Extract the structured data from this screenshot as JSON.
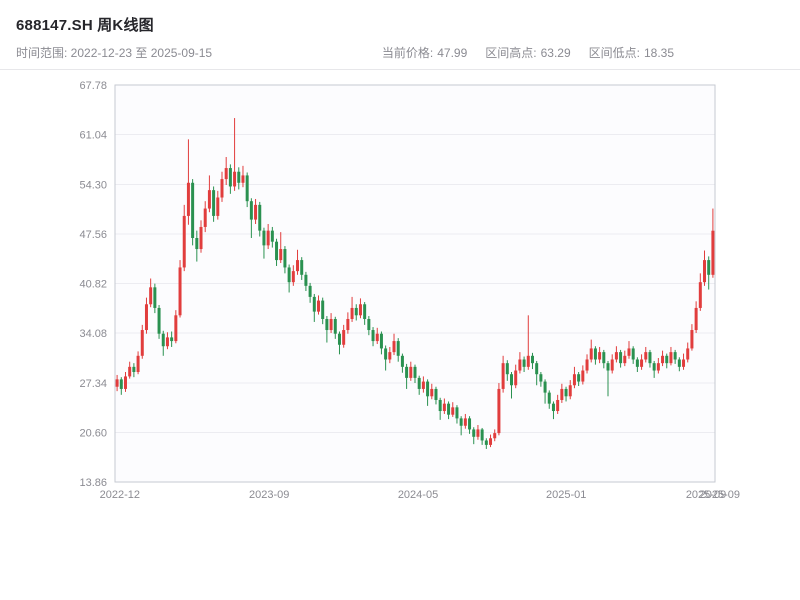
{
  "header": {
    "title": "688147.SH 周K线图",
    "time_range": "时间范围: 2022-12-23 至 2025-09-15",
    "stats": [
      {
        "label": "当前价格:",
        "value": "47.99"
      },
      {
        "label": "区间高点:",
        "value": "63.29"
      },
      {
        "label": "区间低点:",
        "value": "18.35"
      }
    ]
  },
  "chart_data": {
    "type": "candlestick",
    "title": "688147.SH 周K线图",
    "interval": "weekly",
    "start_date": "2022-12-23",
    "end_date": "2025-09-15",
    "current_price": 47.99,
    "range_high": 63.29,
    "range_low": 18.35,
    "y_min": 13.86,
    "y_max": 67.78,
    "y_ticks": [
      "67.78",
      "61.04",
      "54.30",
      "47.56",
      "40.82",
      "34.08",
      "27.34",
      "20.60",
      "13.86"
    ],
    "x_ticks": [
      {
        "label": "2022-12",
        "pos": 0.008
      },
      {
        "label": "2023-09",
        "pos": 0.257
      },
      {
        "label": "2024-05",
        "pos": 0.505
      },
      {
        "label": "2025-01",
        "pos": 0.752
      },
      {
        "label": "2025-09",
        "pos": 0.985
      },
      {
        "label": "2025-09",
        "pos": 1.008
      }
    ],
    "colors": {
      "up": "#e13d3d",
      "down": "#2a9150",
      "grid": "#ececf1",
      "axis_border": "#c6cad1",
      "plot_bg": "#fcfcfe",
      "tick_text": "#8b8b92"
    },
    "ohlc": [
      [
        26.8,
        28.4,
        26.2,
        27.8
      ],
      [
        27.8,
        28.1,
        25.7,
        26.5
      ],
      [
        26.5,
        28.8,
        26.1,
        28.2
      ],
      [
        28.2,
        30.2,
        27.9,
        29.5
      ],
      [
        29.5,
        30.0,
        28.1,
        28.8
      ],
      [
        28.8,
        31.6,
        28.5,
        31.0
      ],
      [
        31.0,
        35.2,
        30.6,
        34.5
      ],
      [
        34.5,
        38.9,
        34.0,
        38.0
      ],
      [
        38.0,
        41.5,
        37.6,
        40.3
      ],
      [
        40.3,
        40.8,
        36.8,
        37.5
      ],
      [
        37.5,
        37.9,
        33.3,
        34.0
      ],
      [
        34.0,
        34.4,
        31.0,
        32.3
      ],
      [
        32.3,
        34.2,
        31.9,
        33.5
      ],
      [
        33.5,
        34.3,
        32.2,
        33.0
      ],
      [
        33.0,
        37.2,
        32.7,
        36.5
      ],
      [
        36.5,
        44.0,
        36.2,
        43.0
      ],
      [
        43.0,
        51.5,
        42.5,
        50.0
      ],
      [
        50.0,
        60.4,
        48.8,
        54.5
      ],
      [
        54.5,
        55.0,
        46.0,
        47.0
      ],
      [
        47.0,
        48.0,
        43.8,
        45.5
      ],
      [
        45.5,
        49.4,
        45.0,
        48.5
      ],
      [
        48.5,
        52.0,
        47.8,
        51.0
      ],
      [
        51.0,
        55.5,
        50.5,
        53.5
      ],
      [
        53.5,
        54.0,
        49.2,
        50.0
      ],
      [
        50.0,
        53.4,
        49.5,
        52.5
      ],
      [
        52.5,
        56.0,
        51.9,
        55.0
      ],
      [
        55.0,
        58.0,
        54.2,
        56.5
      ],
      [
        56.5,
        57.0,
        53.0,
        54.0
      ],
      [
        54.0,
        63.29,
        53.4,
        56.0
      ],
      [
        56.0,
        56.6,
        53.6,
        54.5
      ],
      [
        54.5,
        56.8,
        53.9,
        55.5
      ],
      [
        55.5,
        55.9,
        51.2,
        52.0
      ],
      [
        52.0,
        52.4,
        47.0,
        49.5
      ],
      [
        49.5,
        52.3,
        48.9,
        51.5
      ],
      [
        51.5,
        51.9,
        47.2,
        48.0
      ],
      [
        48.0,
        48.4,
        44.2,
        46.0
      ],
      [
        46.0,
        48.9,
        45.5,
        48.0
      ],
      [
        48.0,
        48.5,
        45.7,
        46.5
      ],
      [
        46.5,
        46.9,
        43.2,
        44.0
      ],
      [
        44.0,
        47.8,
        43.6,
        45.5
      ],
      [
        45.5,
        45.9,
        42.2,
        43.0
      ],
      [
        43.0,
        43.4,
        39.6,
        41.0
      ],
      [
        41.0,
        43.3,
        40.5,
        42.5
      ],
      [
        42.5,
        45.4,
        42.0,
        44.0
      ],
      [
        44.0,
        44.4,
        41.3,
        42.0
      ],
      [
        42.0,
        42.4,
        39.8,
        40.5
      ],
      [
        40.5,
        40.9,
        38.2,
        39.0
      ],
      [
        39.0,
        39.4,
        35.6,
        37.0
      ],
      [
        37.0,
        39.2,
        36.6,
        38.5
      ],
      [
        38.5,
        38.9,
        35.3,
        36.0
      ],
      [
        36.0,
        36.4,
        32.8,
        34.5
      ],
      [
        34.5,
        36.8,
        34.1,
        36.0
      ],
      [
        36.0,
        36.3,
        33.3,
        34.0
      ],
      [
        34.0,
        34.3,
        31.2,
        32.5
      ],
      [
        32.5,
        35.2,
        32.1,
        34.5
      ],
      [
        34.5,
        36.9,
        34.0,
        36.0
      ],
      [
        36.0,
        39.0,
        35.6,
        37.5
      ],
      [
        37.5,
        38.0,
        35.8,
        36.5
      ],
      [
        36.5,
        38.8,
        36.1,
        38.0
      ],
      [
        38.0,
        38.3,
        35.2,
        36.0
      ],
      [
        36.0,
        36.4,
        33.8,
        34.5
      ],
      [
        34.5,
        34.9,
        32.3,
        33.0
      ],
      [
        33.0,
        34.8,
        32.6,
        34.0
      ],
      [
        34.0,
        34.3,
        31.2,
        32.0
      ],
      [
        32.0,
        32.4,
        29.0,
        30.5
      ],
      [
        30.5,
        32.2,
        30.0,
        31.5
      ],
      [
        31.5,
        34.0,
        31.1,
        33.0
      ],
      [
        33.0,
        33.4,
        30.2,
        31.0
      ],
      [
        31.0,
        31.3,
        28.7,
        29.5
      ],
      [
        29.5,
        29.9,
        26.5,
        28.0
      ],
      [
        28.0,
        30.2,
        27.6,
        29.5
      ],
      [
        29.5,
        29.8,
        27.3,
        28.0
      ],
      [
        28.0,
        28.3,
        25.7,
        26.5
      ],
      [
        26.5,
        28.2,
        26.0,
        27.5
      ],
      [
        27.5,
        27.8,
        24.2,
        25.5
      ],
      [
        25.5,
        27.2,
        25.1,
        26.5
      ],
      [
        26.5,
        26.8,
        24.4,
        25.0
      ],
      [
        25.0,
        25.3,
        22.3,
        23.5
      ],
      [
        23.5,
        25.2,
        23.1,
        24.5
      ],
      [
        24.5,
        24.8,
        22.4,
        23.0
      ],
      [
        23.0,
        24.7,
        22.7,
        24.0
      ],
      [
        24.0,
        24.3,
        21.8,
        22.5
      ],
      [
        22.5,
        22.8,
        20.2,
        21.5
      ],
      [
        21.5,
        23.1,
        21.1,
        22.5
      ],
      [
        22.5,
        22.8,
        20.4,
        21.0
      ],
      [
        21.0,
        21.3,
        19.0,
        20.0
      ],
      [
        20.0,
        21.6,
        19.6,
        21.0
      ],
      [
        21.0,
        21.2,
        18.9,
        19.5
      ],
      [
        19.5,
        19.8,
        18.35,
        18.9
      ],
      [
        18.9,
        20.3,
        18.6,
        19.8
      ],
      [
        19.8,
        21.0,
        19.4,
        20.5
      ],
      [
        20.5,
        27.3,
        20.2,
        26.5
      ],
      [
        26.5,
        31.0,
        26.0,
        30.0
      ],
      [
        30.0,
        30.4,
        27.6,
        28.5
      ],
      [
        28.5,
        28.8,
        25.2,
        27.0
      ],
      [
        27.0,
        29.8,
        26.6,
        29.0
      ],
      [
        29.0,
        31.5,
        28.6,
        30.5
      ],
      [
        30.5,
        30.9,
        28.8,
        29.5
      ],
      [
        29.5,
        36.5,
        29.1,
        31.0
      ],
      [
        31.0,
        31.4,
        29.2,
        30.0
      ],
      [
        30.0,
        30.3,
        27.0,
        28.5
      ],
      [
        28.5,
        28.8,
        26.8,
        27.5
      ],
      [
        27.5,
        27.8,
        24.5,
        26.0
      ],
      [
        26.0,
        26.3,
        23.8,
        24.5
      ],
      [
        24.5,
        24.8,
        22.4,
        23.5
      ],
      [
        23.5,
        25.7,
        23.1,
        25.0
      ],
      [
        25.0,
        27.2,
        24.6,
        26.5
      ],
      [
        26.5,
        26.8,
        24.8,
        25.5
      ],
      [
        25.5,
        27.7,
        25.1,
        27.0
      ],
      [
        27.0,
        29.5,
        26.6,
        28.5
      ],
      [
        28.5,
        28.8,
        26.9,
        27.5
      ],
      [
        27.5,
        29.7,
        27.1,
        29.0
      ],
      [
        29.0,
        31.2,
        28.6,
        30.5
      ],
      [
        30.5,
        33.2,
        30.1,
        32.0
      ],
      [
        32.0,
        32.3,
        29.8,
        30.5
      ],
      [
        30.5,
        32.2,
        30.0,
        31.5
      ],
      [
        31.5,
        31.8,
        29.3,
        30.0
      ],
      [
        30.0,
        30.3,
        25.5,
        29.0
      ],
      [
        29.0,
        31.2,
        28.6,
        30.5
      ],
      [
        30.5,
        32.3,
        30.1,
        31.5
      ],
      [
        31.5,
        31.8,
        29.4,
        30.0
      ],
      [
        30.0,
        31.7,
        29.6,
        31.0
      ],
      [
        31.0,
        33.0,
        30.6,
        32.0
      ],
      [
        32.0,
        32.3,
        29.9,
        30.5
      ],
      [
        30.5,
        30.8,
        28.8,
        29.5
      ],
      [
        29.5,
        31.2,
        29.1,
        30.5
      ],
      [
        30.5,
        32.2,
        30.1,
        31.5
      ],
      [
        31.5,
        31.8,
        29.4,
        30.0
      ],
      [
        30.0,
        30.3,
        28.0,
        29.0
      ],
      [
        29.0,
        30.7,
        28.6,
        30.0
      ],
      [
        30.0,
        31.7,
        29.6,
        31.0
      ],
      [
        31.0,
        31.3,
        29.3,
        30.0
      ],
      [
        30.0,
        32.2,
        29.7,
        31.5
      ],
      [
        31.5,
        31.8,
        29.9,
        30.5
      ],
      [
        30.5,
        30.8,
        28.9,
        29.5
      ],
      [
        29.5,
        31.3,
        29.1,
        30.5
      ],
      [
        30.5,
        32.8,
        30.1,
        32.0
      ],
      [
        32.0,
        35.3,
        31.7,
        34.5
      ],
      [
        34.5,
        38.4,
        34.1,
        37.5
      ],
      [
        37.5,
        42.2,
        37.1,
        41.0
      ],
      [
        41.0,
        45.3,
        40.5,
        44.0
      ],
      [
        44.0,
        44.5,
        40.0,
        42.0
      ],
      [
        42.0,
        51.0,
        41.6,
        47.99
      ]
    ]
  }
}
